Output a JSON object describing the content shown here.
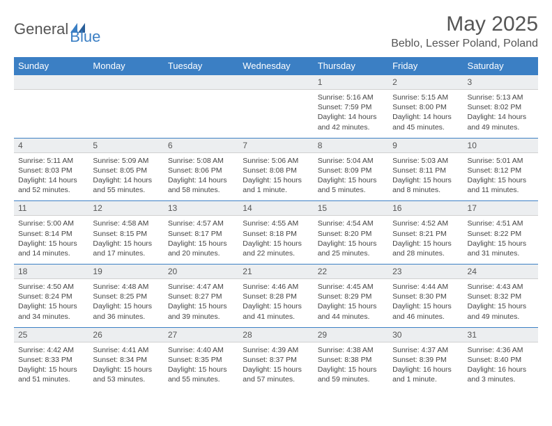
{
  "brand": {
    "part1": "General",
    "part2": "Blue"
  },
  "title": "May 2025",
  "location": "Beblo, Lesser Poland, Poland",
  "colors": {
    "accent": "#3b7fc4",
    "header_text": "#ffffff",
    "daynum_bg": "#eceef0",
    "border": "#3b7fc4",
    "text": "#444444",
    "title_text": "#555555",
    "background": "#ffffff"
  },
  "day_headers": [
    "Sunday",
    "Monday",
    "Tuesday",
    "Wednesday",
    "Thursday",
    "Friday",
    "Saturday"
  ],
  "weeks": [
    {
      "nums": [
        "",
        "",
        "",
        "",
        "1",
        "2",
        "3"
      ],
      "cells": [
        {
          "sunrise": "",
          "sunset": "",
          "daylight": ""
        },
        {
          "sunrise": "",
          "sunset": "",
          "daylight": ""
        },
        {
          "sunrise": "",
          "sunset": "",
          "daylight": ""
        },
        {
          "sunrise": "",
          "sunset": "",
          "daylight": ""
        },
        {
          "sunrise": "Sunrise: 5:16 AM",
          "sunset": "Sunset: 7:59 PM",
          "daylight": "Daylight: 14 hours and 42 minutes."
        },
        {
          "sunrise": "Sunrise: 5:15 AM",
          "sunset": "Sunset: 8:00 PM",
          "daylight": "Daylight: 14 hours and 45 minutes."
        },
        {
          "sunrise": "Sunrise: 5:13 AM",
          "sunset": "Sunset: 8:02 PM",
          "daylight": "Daylight: 14 hours and 49 minutes."
        }
      ]
    },
    {
      "nums": [
        "4",
        "5",
        "6",
        "7",
        "8",
        "9",
        "10"
      ],
      "cells": [
        {
          "sunrise": "Sunrise: 5:11 AM",
          "sunset": "Sunset: 8:03 PM",
          "daylight": "Daylight: 14 hours and 52 minutes."
        },
        {
          "sunrise": "Sunrise: 5:09 AM",
          "sunset": "Sunset: 8:05 PM",
          "daylight": "Daylight: 14 hours and 55 minutes."
        },
        {
          "sunrise": "Sunrise: 5:08 AM",
          "sunset": "Sunset: 8:06 PM",
          "daylight": "Daylight: 14 hours and 58 minutes."
        },
        {
          "sunrise": "Sunrise: 5:06 AM",
          "sunset": "Sunset: 8:08 PM",
          "daylight": "Daylight: 15 hours and 1 minute."
        },
        {
          "sunrise": "Sunrise: 5:04 AM",
          "sunset": "Sunset: 8:09 PM",
          "daylight": "Daylight: 15 hours and 5 minutes."
        },
        {
          "sunrise": "Sunrise: 5:03 AM",
          "sunset": "Sunset: 8:11 PM",
          "daylight": "Daylight: 15 hours and 8 minutes."
        },
        {
          "sunrise": "Sunrise: 5:01 AM",
          "sunset": "Sunset: 8:12 PM",
          "daylight": "Daylight: 15 hours and 11 minutes."
        }
      ]
    },
    {
      "nums": [
        "11",
        "12",
        "13",
        "14",
        "15",
        "16",
        "17"
      ],
      "cells": [
        {
          "sunrise": "Sunrise: 5:00 AM",
          "sunset": "Sunset: 8:14 PM",
          "daylight": "Daylight: 15 hours and 14 minutes."
        },
        {
          "sunrise": "Sunrise: 4:58 AM",
          "sunset": "Sunset: 8:15 PM",
          "daylight": "Daylight: 15 hours and 17 minutes."
        },
        {
          "sunrise": "Sunrise: 4:57 AM",
          "sunset": "Sunset: 8:17 PM",
          "daylight": "Daylight: 15 hours and 20 minutes."
        },
        {
          "sunrise": "Sunrise: 4:55 AM",
          "sunset": "Sunset: 8:18 PM",
          "daylight": "Daylight: 15 hours and 22 minutes."
        },
        {
          "sunrise": "Sunrise: 4:54 AM",
          "sunset": "Sunset: 8:20 PM",
          "daylight": "Daylight: 15 hours and 25 minutes."
        },
        {
          "sunrise": "Sunrise: 4:52 AM",
          "sunset": "Sunset: 8:21 PM",
          "daylight": "Daylight: 15 hours and 28 minutes."
        },
        {
          "sunrise": "Sunrise: 4:51 AM",
          "sunset": "Sunset: 8:22 PM",
          "daylight": "Daylight: 15 hours and 31 minutes."
        }
      ]
    },
    {
      "nums": [
        "18",
        "19",
        "20",
        "21",
        "22",
        "23",
        "24"
      ],
      "cells": [
        {
          "sunrise": "Sunrise: 4:50 AM",
          "sunset": "Sunset: 8:24 PM",
          "daylight": "Daylight: 15 hours and 34 minutes."
        },
        {
          "sunrise": "Sunrise: 4:48 AM",
          "sunset": "Sunset: 8:25 PM",
          "daylight": "Daylight: 15 hours and 36 minutes."
        },
        {
          "sunrise": "Sunrise: 4:47 AM",
          "sunset": "Sunset: 8:27 PM",
          "daylight": "Daylight: 15 hours and 39 minutes."
        },
        {
          "sunrise": "Sunrise: 4:46 AM",
          "sunset": "Sunset: 8:28 PM",
          "daylight": "Daylight: 15 hours and 41 minutes."
        },
        {
          "sunrise": "Sunrise: 4:45 AM",
          "sunset": "Sunset: 8:29 PM",
          "daylight": "Daylight: 15 hours and 44 minutes."
        },
        {
          "sunrise": "Sunrise: 4:44 AM",
          "sunset": "Sunset: 8:30 PM",
          "daylight": "Daylight: 15 hours and 46 minutes."
        },
        {
          "sunrise": "Sunrise: 4:43 AM",
          "sunset": "Sunset: 8:32 PM",
          "daylight": "Daylight: 15 hours and 49 minutes."
        }
      ]
    },
    {
      "nums": [
        "25",
        "26",
        "27",
        "28",
        "29",
        "30",
        "31"
      ],
      "cells": [
        {
          "sunrise": "Sunrise: 4:42 AM",
          "sunset": "Sunset: 8:33 PM",
          "daylight": "Daylight: 15 hours and 51 minutes."
        },
        {
          "sunrise": "Sunrise: 4:41 AM",
          "sunset": "Sunset: 8:34 PM",
          "daylight": "Daylight: 15 hours and 53 minutes."
        },
        {
          "sunrise": "Sunrise: 4:40 AM",
          "sunset": "Sunset: 8:35 PM",
          "daylight": "Daylight: 15 hours and 55 minutes."
        },
        {
          "sunrise": "Sunrise: 4:39 AM",
          "sunset": "Sunset: 8:37 PM",
          "daylight": "Daylight: 15 hours and 57 minutes."
        },
        {
          "sunrise": "Sunrise: 4:38 AM",
          "sunset": "Sunset: 8:38 PM",
          "daylight": "Daylight: 15 hours and 59 minutes."
        },
        {
          "sunrise": "Sunrise: 4:37 AM",
          "sunset": "Sunset: 8:39 PM",
          "daylight": "Daylight: 16 hours and 1 minute."
        },
        {
          "sunrise": "Sunrise: 4:36 AM",
          "sunset": "Sunset: 8:40 PM",
          "daylight": "Daylight: 16 hours and 3 minutes."
        }
      ]
    }
  ]
}
